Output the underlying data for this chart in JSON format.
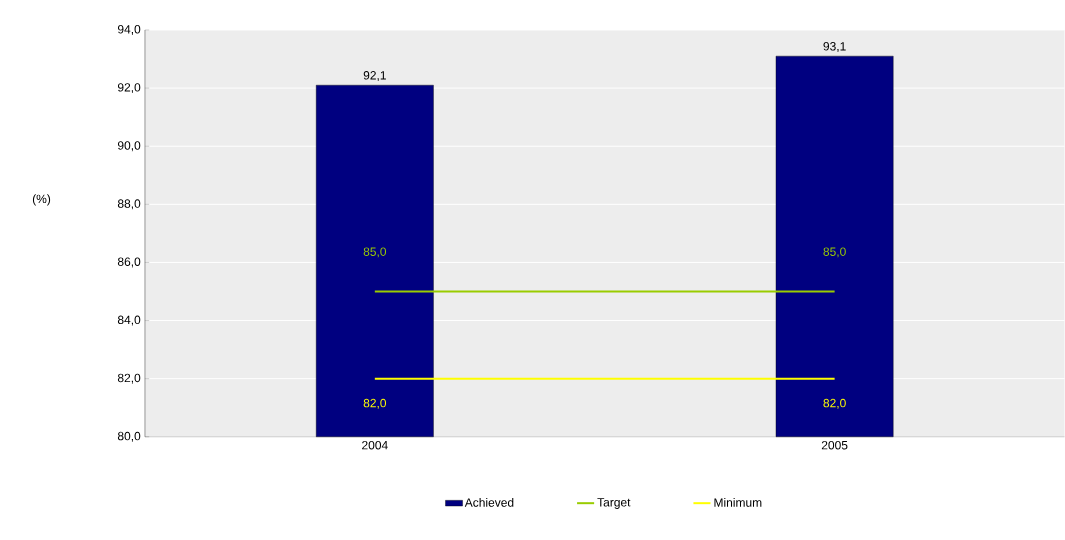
{
  "chart_data": {
    "type": "bar",
    "annotations": [
      "(%)"
    ],
    "categories": [
      "2004",
      "2005"
    ],
    "series": [
      {
        "name": "Achieved",
        "color": "#000080",
        "values": [
          92.1,
          93.1
        ],
        "value_labels": [
          "92,1",
          "93,1"
        ]
      },
      {
        "name": "Target",
        "type": "line",
        "color": "#99cc00",
        "values": [
          85.0,
          85.0
        ],
        "value_labels": [
          "85,0",
          "85,0"
        ]
      },
      {
        "name": "Minimum",
        "type": "line",
        "color": "#ffff00",
        "values": [
          82.0,
          82.0
        ],
        "value_labels": [
          "82,0",
          "82,0"
        ]
      }
    ],
    "ylim": [
      80,
      94
    ],
    "yticks": [
      {
        "value": 80,
        "label": "80,0"
      },
      {
        "value": 82,
        "label": "82,0"
      },
      {
        "value": 84,
        "label": "84,0"
      },
      {
        "value": 86,
        "label": "86,0"
      },
      {
        "value": 88,
        "label": "88,0"
      },
      {
        "value": 90,
        "label": "90,0"
      },
      {
        "value": 92,
        "label": "92,0"
      },
      {
        "value": 94,
        "label": "94,0"
      }
    ],
    "grid": "y",
    "legend": "bottom",
    "marker": "none"
  }
}
